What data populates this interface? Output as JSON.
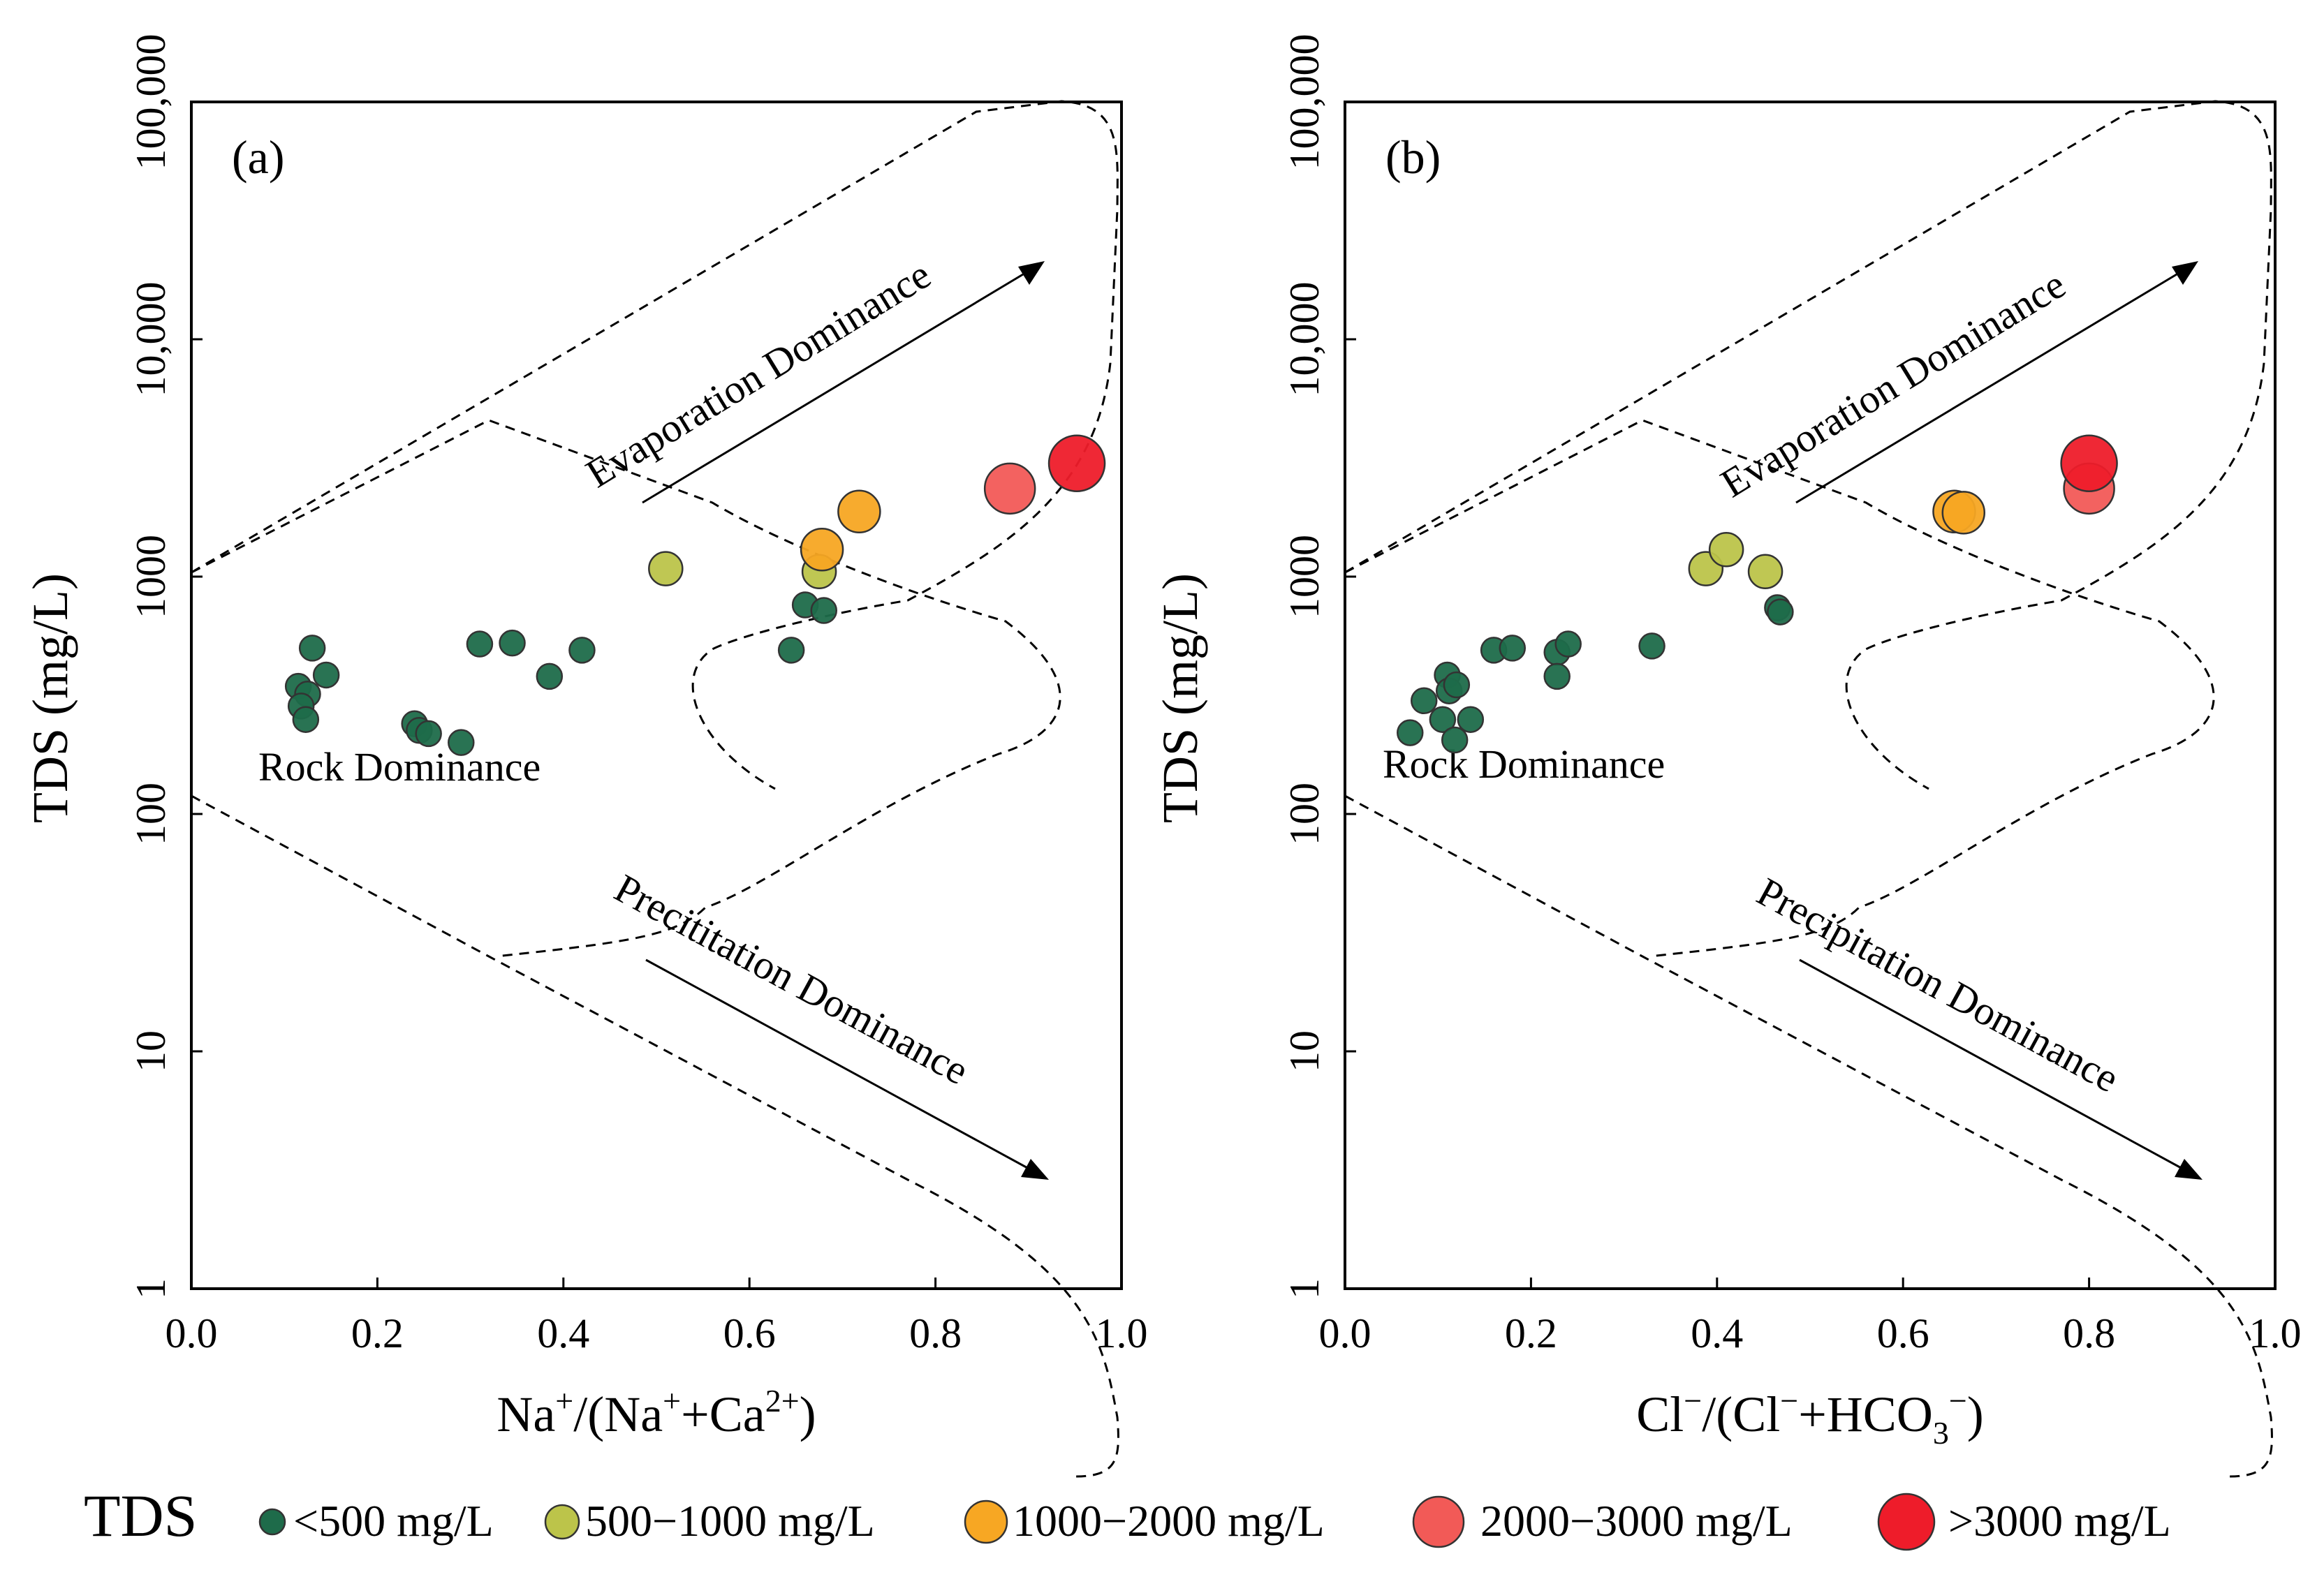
{
  "legend": {
    "title": "TDS",
    "items": [
      {
        "label": "<500 mg/L",
        "color": "#1e6b4a"
      },
      {
        "label": "500−1000 mg/L",
        "color": "#bcc44a"
      },
      {
        "label": "1000−2000 mg/L",
        "color": "#f7a723"
      },
      {
        "label": "2000−3000 mg/L",
        "color": "#f25a57"
      },
      {
        "label": ">3000 mg/L",
        "color": "#ee1c2a"
      }
    ]
  },
  "chart_data": [
    {
      "type": "scatter",
      "panel_label": "(a)",
      "ylabel": "TDS (mg/L)",
      "xlabel_parts": [
        "Na",
        "+",
        "/(Na",
        "+",
        "+Ca",
        "2+",
        ")"
      ],
      "xlim": [
        0,
        1
      ],
      "ylim": [
        1,
        100000
      ],
      "yscale": "log",
      "x_ticks": [
        "0.0",
        "0.2",
        "0.4",
        "0.6",
        "0.8",
        "1.0"
      ],
      "y_ticks": [
        "1",
        "10",
        "100",
        "1000",
        "10,000",
        "100,000"
      ],
      "annotations": {
        "evaporation": "Evaporation Dominance",
        "rock": "Rock Dominance",
        "precipitation": "Precititation Dominance"
      },
      "points": [
        {
          "x": 0.13,
          "y": 500,
          "c": 0
        },
        {
          "x": 0.145,
          "y": 385,
          "c": 0
        },
        {
          "x": 0.115,
          "y": 345,
          "c": 0
        },
        {
          "x": 0.125,
          "y": 320,
          "c": 0
        },
        {
          "x": 0.118,
          "y": 285,
          "c": 0
        },
        {
          "x": 0.123,
          "y": 250,
          "c": 0
        },
        {
          "x": 0.24,
          "y": 240,
          "c": 0
        },
        {
          "x": 0.245,
          "y": 225,
          "c": 0
        },
        {
          "x": 0.255,
          "y": 218,
          "c": 0
        },
        {
          "x": 0.29,
          "y": 200,
          "c": 0
        },
        {
          "x": 0.31,
          "y": 520,
          "c": 0
        },
        {
          "x": 0.345,
          "y": 525,
          "c": 0
        },
        {
          "x": 0.385,
          "y": 380,
          "c": 0
        },
        {
          "x": 0.42,
          "y": 490,
          "c": 0
        },
        {
          "x": 0.645,
          "y": 490,
          "c": 0
        },
        {
          "x": 0.66,
          "y": 760,
          "c": 0
        },
        {
          "x": 0.68,
          "y": 720,
          "c": 0
        },
        {
          "x": 0.51,
          "y": 1080,
          "c": 1
        },
        {
          "x": 0.675,
          "y": 1050,
          "c": 1
        },
        {
          "x": 0.678,
          "y": 1300,
          "c": 2
        },
        {
          "x": 0.718,
          "y": 1880,
          "c": 2
        },
        {
          "x": 0.88,
          "y": 2350,
          "c": 3
        },
        {
          "x": 0.952,
          "y": 3000,
          "c": 4
        }
      ]
    },
    {
      "type": "scatter",
      "panel_label": "(b)",
      "ylabel": "TDS (mg/L)",
      "xlabel_parts": [
        "Cl",
        "−",
        "/(Cl",
        "−",
        "+HCO",
        "3",
        "−",
        ")"
      ],
      "xlim": [
        0,
        1
      ],
      "ylim": [
        1,
        100000
      ],
      "yscale": "log",
      "x_ticks": [
        "0.0",
        "0.2",
        "0.4",
        "0.6",
        "0.8",
        "1.0"
      ],
      "y_ticks": [
        "1",
        "10",
        "100",
        "1000",
        "10,000",
        "100,000"
      ],
      "annotations": {
        "evaporation": "Evaporation Dominance",
        "rock": "Rock Dominance",
        "precipitation": "Precipitation Dominance"
      },
      "points": [
        {
          "x": 0.07,
          "y": 220,
          "c": 0
        },
        {
          "x": 0.085,
          "y": 300,
          "c": 0
        },
        {
          "x": 0.105,
          "y": 250,
          "c": 0
        },
        {
          "x": 0.11,
          "y": 385,
          "c": 0
        },
        {
          "x": 0.112,
          "y": 330,
          "c": 0
        },
        {
          "x": 0.12,
          "y": 350,
          "c": 0
        },
        {
          "x": 0.118,
          "y": 205,
          "c": 0
        },
        {
          "x": 0.135,
          "y": 250,
          "c": 0
        },
        {
          "x": 0.16,
          "y": 490,
          "c": 0
        },
        {
          "x": 0.18,
          "y": 500,
          "c": 0
        },
        {
          "x": 0.228,
          "y": 480,
          "c": 0
        },
        {
          "x": 0.228,
          "y": 380,
          "c": 0
        },
        {
          "x": 0.24,
          "y": 520,
          "c": 0
        },
        {
          "x": 0.33,
          "y": 510,
          "c": 0
        },
        {
          "x": 0.465,
          "y": 740,
          "c": 0
        },
        {
          "x": 0.468,
          "y": 710,
          "c": 0
        },
        {
          "x": 0.388,
          "y": 1080,
          "c": 1
        },
        {
          "x": 0.452,
          "y": 1050,
          "c": 1
        },
        {
          "x": 0.41,
          "y": 1300,
          "c": 1
        },
        {
          "x": 0.655,
          "y": 1880,
          "c": 2
        },
        {
          "x": 0.665,
          "y": 1860,
          "c": 2
        },
        {
          "x": 0.8,
          "y": 2350,
          "c": 3
        },
        {
          "x": 0.8,
          "y": 3000,
          "c": 4
        }
      ]
    }
  ]
}
